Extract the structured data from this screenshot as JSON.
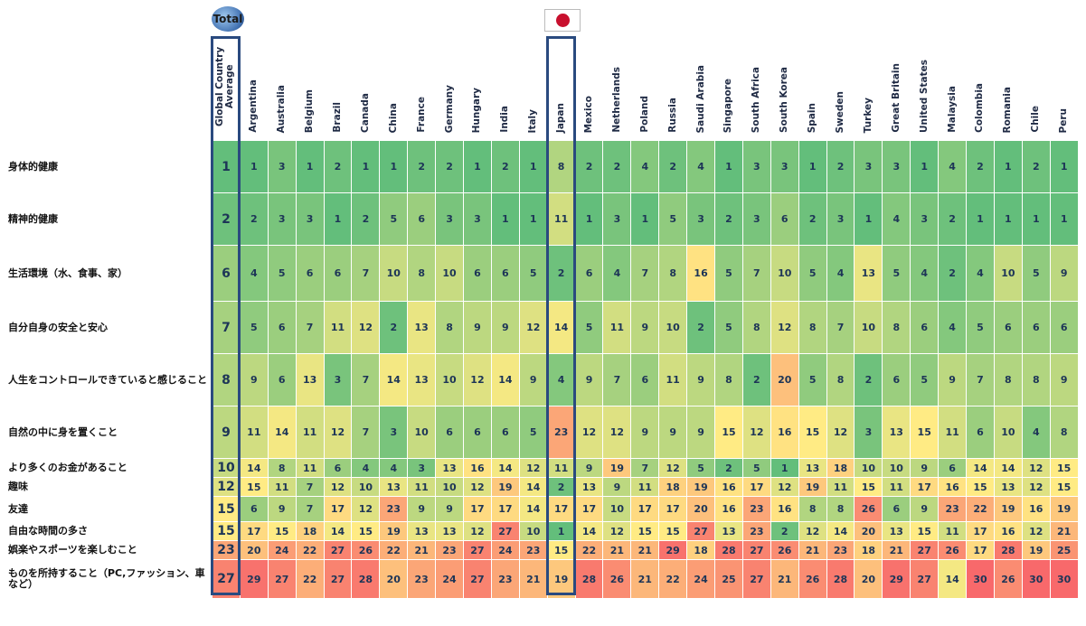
{
  "badges": {
    "total_label": "Total",
    "flag_country": "Japan"
  },
  "colors": {
    "scale_low": "#63be7b",
    "scale_mid": "#ffeb84",
    "scale_high": "#f8696b",
    "highlight_border": "#2a4a7f"
  },
  "chart_data": {
    "type": "heatmap",
    "columns": [
      "Global Country Average",
      "Argentina",
      "Australia",
      "Belgium",
      "Brazil",
      "Canada",
      "China",
      "France",
      "Germany",
      "Hungary",
      "India",
      "Italy",
      "Japan",
      "Mexico",
      "Netherlands",
      "Poland",
      "Russia",
      "Saudi Arabia",
      "Singapore",
      "South Africa",
      "South Korea",
      "Spain",
      "Sweden",
      "Turkey",
      "Great Britain",
      "United States",
      "Malaysia",
      "Colombia",
      "Romania",
      "Chile",
      "Peru"
    ],
    "rows": [
      {
        "label": "身体的健康",
        "values": [
          1,
          1,
          3,
          1,
          2,
          1,
          1,
          2,
          2,
          1,
          2,
          1,
          8,
          2,
          2,
          4,
          2,
          4,
          1,
          3,
          3,
          1,
          2,
          3,
          3,
          1,
          4,
          2,
          1,
          2,
          1
        ]
      },
      {
        "label": "精神的健康",
        "values": [
          2,
          2,
          3,
          3,
          1,
          2,
          5,
          6,
          3,
          3,
          1,
          1,
          11,
          1,
          3,
          1,
          5,
          3,
          2,
          3,
          6,
          2,
          3,
          1,
          4,
          3,
          2,
          1,
          1,
          1,
          1
        ]
      },
      {
        "label": "生活環境（水、食事、家）",
        "values": [
          6,
          4,
          5,
          6,
          6,
          7,
          10,
          8,
          10,
          6,
          6,
          5,
          2,
          6,
          4,
          7,
          8,
          16,
          5,
          7,
          10,
          5,
          4,
          13,
          5,
          4,
          2,
          4,
          10,
          5,
          9
        ]
      },
      {
        "label": "自分自身の安全と安心",
        "values": [
          7,
          5,
          6,
          7,
          11,
          12,
          2,
          13,
          8,
          9,
          9,
          12,
          14,
          5,
          11,
          9,
          10,
          2,
          5,
          8,
          12,
          8,
          7,
          10,
          8,
          6,
          4,
          5,
          6,
          6,
          6
        ]
      },
      {
        "label": "人生をコントロールできていると感じること",
        "values": [
          8,
          9,
          6,
          13,
          3,
          7,
          14,
          13,
          10,
          12,
          14,
          9,
          4,
          9,
          7,
          6,
          11,
          9,
          8,
          2,
          20,
          5,
          8,
          2,
          6,
          5,
          9,
          7,
          8,
          8,
          9
        ]
      },
      {
        "label": "自然の中に身を置くこと",
        "values": [
          9,
          11,
          14,
          11,
          12,
          7,
          3,
          10,
          6,
          6,
          6,
          5,
          23,
          12,
          12,
          9,
          9,
          9,
          15,
          12,
          16,
          15,
          12,
          3,
          13,
          15,
          11,
          6,
          10,
          4,
          8
        ]
      },
      {
        "label": "より多くのお金があること",
        "values": [
          10,
          14,
          8,
          11,
          6,
          4,
          4,
          3,
          13,
          16,
          14,
          12,
          11,
          9,
          19,
          7,
          12,
          5,
          2,
          5,
          1,
          13,
          18,
          10,
          10,
          9,
          6,
          14,
          14,
          12,
          15
        ]
      },
      {
        "label": "趣味",
        "values": [
          12,
          15,
          11,
          7,
          12,
          10,
          13,
          11,
          10,
          12,
          19,
          14,
          2,
          13,
          9,
          11,
          18,
          19,
          16,
          17,
          12,
          19,
          11,
          15,
          11,
          17,
          16,
          15,
          13,
          12,
          15
        ]
      },
      {
        "label": "友達",
        "values": [
          15,
          6,
          9,
          7,
          17,
          12,
          23,
          9,
          9,
          17,
          17,
          14,
          17,
          17,
          10,
          17,
          17,
          20,
          16,
          23,
          16,
          8,
          8,
          26,
          6,
          9,
          23,
          22,
          19,
          16,
          19
        ]
      },
      {
        "label": "自由な時間の多さ",
        "values": [
          15,
          17,
          15,
          18,
          14,
          15,
          19,
          13,
          13,
          12,
          27,
          10,
          1,
          14,
          12,
          15,
          15,
          27,
          13,
          23,
          2,
          12,
          14,
          20,
          13,
          15,
          11,
          17,
          16,
          12,
          21
        ]
      },
      {
        "label": "娯楽やスポーツを楽しむこと",
        "values": [
          23,
          20,
          24,
          22,
          27,
          26,
          22,
          21,
          23,
          27,
          24,
          23,
          15,
          22,
          21,
          21,
          29,
          18,
          28,
          27,
          26,
          21,
          23,
          18,
          21,
          27,
          26,
          17,
          28,
          19,
          25
        ]
      },
      {
        "label": "ものを所持すること（PC,ファッション、車など）",
        "values": [
          27,
          29,
          27,
          22,
          27,
          28,
          20,
          23,
          24,
          27,
          23,
          21,
          19,
          28,
          26,
          21,
          22,
          24,
          25,
          27,
          21,
          26,
          28,
          20,
          29,
          27,
          14,
          30,
          26,
          30,
          30
        ]
      }
    ],
    "color_scale": {
      "min": 1,
      "mid": 15,
      "max": 30
    },
    "highlighted_columns": [
      "Global Country Average",
      "Japan"
    ]
  }
}
